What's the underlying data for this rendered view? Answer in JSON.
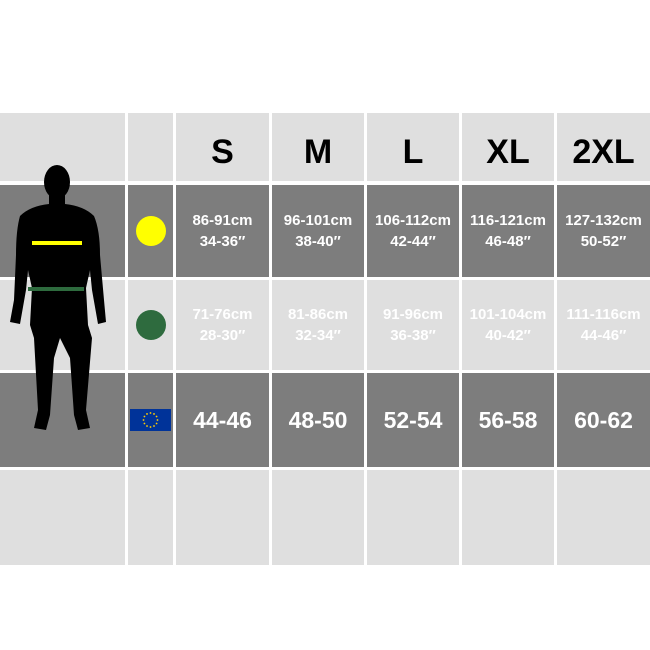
{
  "sizes": [
    "S",
    "M",
    "L",
    "XL",
    "2XL"
  ],
  "rows": {
    "chest": {
      "icon": "yellow-circle-icon",
      "color": "#ffff00",
      "values": [
        [
          "86-91cm",
          "34-36″"
        ],
        [
          "96-101cm",
          "38-40″"
        ],
        [
          "106-112cm",
          "42-44″"
        ],
        [
          "116-121cm",
          "46-48″"
        ],
        [
          "127-132cm",
          "50-52″"
        ]
      ]
    },
    "waist": {
      "icon": "green-circle-icon",
      "color": "#2e6b3e",
      "values": [
        [
          "71-76cm",
          "28-30″"
        ],
        [
          "81-86cm",
          "32-34″"
        ],
        [
          "91-96cm",
          "36-38″"
        ],
        [
          "101-104cm",
          "40-42″"
        ],
        [
          "111-116cm",
          "44-46″"
        ]
      ]
    },
    "eu": {
      "icon": "eu-flag-icon",
      "values": [
        "44-46",
        "48-50",
        "52-54",
        "56-58",
        "60-62"
      ]
    }
  },
  "colors": {
    "light": "#dfdfdf",
    "dark": "#7d7d7d",
    "eu_blue": "#003399",
    "eu_star": "#ffcc00"
  }
}
